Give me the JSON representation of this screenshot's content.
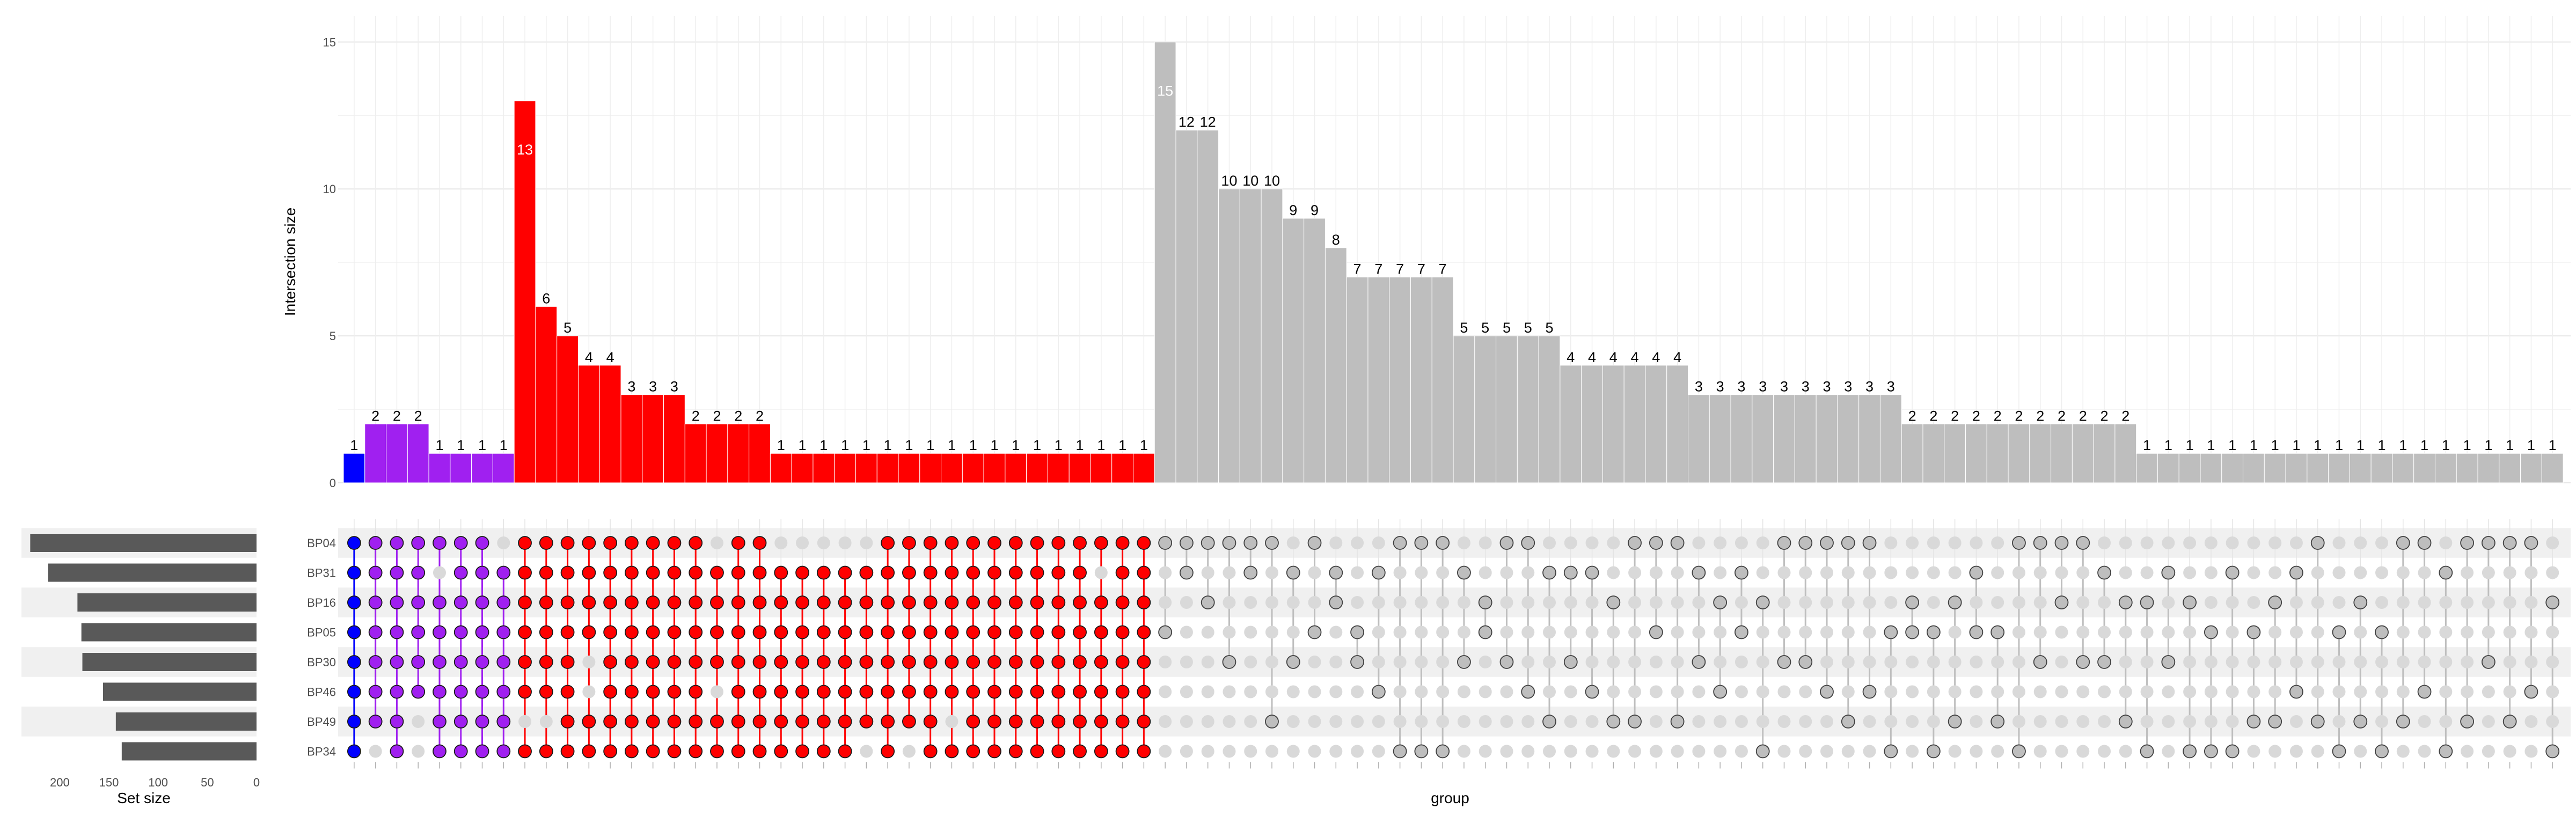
{
  "chart_data": {
    "type": "bar",
    "ylabel": "Intersection size",
    "xlabel": "group",
    "set_size_label": "Set size",
    "ylim": [
      0,
      15.7
    ],
    "yticks": [
      0,
      5,
      10,
      15
    ],
    "sets": [
      "BP04",
      "BP31",
      "BP16",
      "BP05",
      "BP30",
      "BP46",
      "BP49",
      "BP34"
    ],
    "set_sizes": [
      230,
      212,
      182,
      178,
      177,
      156,
      143,
      137
    ],
    "set_size_ticks": [
      200,
      150,
      100,
      50,
      0
    ],
    "set_size_max": 240,
    "colors": {
      "blue": "#0000ff",
      "purple": "#a020f0",
      "red": "#ff0000",
      "gray": "#bebebe",
      "bar": "#595959",
      "dot_off": "#d9d9d9",
      "stripe": "#f0f0f0"
    },
    "columns": [
      {
        "value": 1,
        "group": "blue",
        "members": [
          0,
          1,
          2,
          3,
          4,
          5,
          6,
          7
        ]
      },
      {
        "value": 2,
        "group": "purple",
        "members": [
          0,
          1,
          2,
          3,
          4,
          5,
          6
        ]
      },
      {
        "value": 2,
        "group": "purple",
        "members": [
          0,
          1,
          2,
          3,
          4,
          5,
          6,
          7
        ]
      },
      {
        "value": 2,
        "group": "purple",
        "members": [
          0,
          1,
          2,
          3,
          4,
          5
        ]
      },
      {
        "value": 1,
        "group": "purple",
        "members": [
          0,
          2,
          3,
          4,
          5,
          6,
          7
        ]
      },
      {
        "value": 1,
        "group": "purple",
        "members": [
          0,
          1,
          2,
          3,
          4,
          5,
          6,
          7
        ]
      },
      {
        "value": 1,
        "group": "purple",
        "members": [
          0,
          1,
          2,
          3,
          4,
          5,
          6,
          7
        ]
      },
      {
        "value": 1,
        "group": "purple",
        "members": [
          1,
          2,
          3,
          4,
          5,
          6,
          7
        ]
      },
      {
        "value": 13,
        "group": "red",
        "members": [
          0,
          1,
          2,
          3,
          4,
          5,
          7
        ]
      },
      {
        "value": 6,
        "group": "red",
        "members": [
          0,
          1,
          2,
          3,
          4,
          5,
          7
        ]
      },
      {
        "value": 5,
        "group": "red",
        "members": [
          0,
          1,
          2,
          3,
          4,
          5,
          6,
          7
        ]
      },
      {
        "value": 4,
        "group": "red",
        "members": [
          0,
          1,
          2,
          3,
          6,
          7
        ]
      },
      {
        "value": 4,
        "group": "red",
        "members": [
          0,
          1,
          2,
          3,
          4,
          5,
          6,
          7
        ]
      },
      {
        "value": 3,
        "group": "red",
        "members": [
          0,
          1,
          2,
          3,
          4,
          5,
          6,
          7
        ]
      },
      {
        "value": 3,
        "group": "red",
        "members": [
          0,
          1,
          2,
          3,
          4,
          5,
          6,
          7
        ]
      },
      {
        "value": 3,
        "group": "red",
        "members": [
          0,
          1,
          2,
          3,
          4,
          5,
          6,
          7
        ]
      },
      {
        "value": 2,
        "group": "red",
        "members": [
          0,
          1,
          2,
          3,
          4,
          5,
          6,
          7
        ]
      },
      {
        "value": 2,
        "group": "red",
        "members": [
          1,
          2,
          3,
          4,
          6,
          7
        ]
      },
      {
        "value": 2,
        "group": "red",
        "members": [
          0,
          1,
          2,
          3,
          4,
          5,
          6,
          7
        ]
      },
      {
        "value": 2,
        "group": "red",
        "members": [
          0,
          1,
          2,
          3,
          4,
          5,
          6,
          7
        ]
      },
      {
        "value": 1,
        "group": "red",
        "members": [
          1,
          2,
          3,
          4,
          5,
          6,
          7
        ]
      },
      {
        "value": 1,
        "group": "red",
        "members": [
          1,
          2,
          3,
          4,
          5,
          6,
          7
        ]
      },
      {
        "value": 1,
        "group": "red",
        "members": [
          1,
          2,
          3,
          4,
          5,
          6,
          7
        ]
      },
      {
        "value": 1,
        "group": "red",
        "members": [
          1,
          2,
          3,
          4,
          5,
          6,
          7
        ]
      },
      {
        "value": 1,
        "group": "red",
        "members": [
          1,
          2,
          3,
          4,
          5,
          6
        ]
      },
      {
        "value": 1,
        "group": "red",
        "members": [
          0,
          1,
          2,
          3,
          4,
          5,
          6,
          7
        ]
      },
      {
        "value": 1,
        "group": "red",
        "members": [
          0,
          1,
          2,
          3,
          4,
          5,
          6
        ]
      },
      {
        "value": 1,
        "group": "red",
        "members": [
          0,
          1,
          2,
          3,
          4,
          5,
          6,
          7
        ]
      },
      {
        "value": 1,
        "group": "red",
        "members": [
          0,
          1,
          2,
          3,
          4,
          5,
          7
        ]
      },
      {
        "value": 1,
        "group": "red",
        "members": [
          0,
          1,
          2,
          3,
          4,
          5,
          6,
          7
        ]
      },
      {
        "value": 1,
        "group": "red",
        "members": [
          0,
          1,
          2,
          3,
          4,
          5,
          6,
          7
        ]
      },
      {
        "value": 1,
        "group": "red",
        "members": [
          0,
          1,
          2,
          3,
          4,
          5,
          6,
          7
        ]
      },
      {
        "value": 1,
        "group": "red",
        "members": [
          0,
          1,
          2,
          3,
          4,
          5,
          6,
          7
        ]
      },
      {
        "value": 1,
        "group": "red",
        "members": [
          0,
          1,
          2,
          3,
          4,
          5,
          6,
          7
        ]
      },
      {
        "value": 1,
        "group": "red",
        "members": [
          0,
          1,
          2,
          3,
          4,
          5,
          6,
          7
        ]
      },
      {
        "value": 1,
        "group": "red",
        "members": [
          0,
          2,
          3,
          4,
          5,
          6,
          7
        ]
      },
      {
        "value": 1,
        "group": "red",
        "members": [
          0,
          1,
          2,
          3,
          4,
          5,
          6,
          7
        ]
      },
      {
        "value": 1,
        "group": "red",
        "members": [
          0,
          1,
          2,
          3,
          4,
          5,
          6,
          7
        ]
      },
      {
        "value": 15,
        "group": "gray",
        "members": [
          0,
          3
        ]
      },
      {
        "value": 12,
        "group": "gray",
        "members": [
          0,
          1
        ]
      },
      {
        "value": 12,
        "group": "gray",
        "members": [
          0,
          2
        ]
      },
      {
        "value": 10,
        "group": "gray",
        "members": [
          0,
          4
        ]
      },
      {
        "value": 10,
        "group": "gray",
        "members": [
          0,
          1
        ]
      },
      {
        "value": 10,
        "group": "gray",
        "members": [
          0,
          6
        ]
      },
      {
        "value": 9,
        "group": "gray",
        "members": [
          1,
          4
        ]
      },
      {
        "value": 9,
        "group": "gray",
        "members": [
          0,
          3
        ]
      },
      {
        "value": 8,
        "group": "gray",
        "members": [
          1,
          2
        ]
      },
      {
        "value": 7,
        "group": "gray",
        "members": [
          3,
          4
        ]
      },
      {
        "value": 7,
        "group": "gray",
        "members": [
          1,
          5
        ]
      },
      {
        "value": 7,
        "group": "gray",
        "members": [
          0,
          7
        ]
      },
      {
        "value": 7,
        "group": "gray",
        "members": [
          0,
          7
        ]
      },
      {
        "value": 7,
        "group": "gray",
        "members": [
          0,
          7
        ]
      },
      {
        "value": 5,
        "group": "gray",
        "members": [
          1,
          4
        ]
      },
      {
        "value": 5,
        "group": "gray",
        "members": [
          2,
          3
        ]
      },
      {
        "value": 5,
        "group": "gray",
        "members": [
          0,
          4
        ]
      },
      {
        "value": 5,
        "group": "gray",
        "members": [
          0,
          5
        ]
      },
      {
        "value": 5,
        "group": "gray",
        "members": [
          1,
          6
        ]
      },
      {
        "value": 4,
        "group": "gray",
        "members": [
          1,
          4
        ]
      },
      {
        "value": 4,
        "group": "gray",
        "members": [
          1,
          5
        ]
      },
      {
        "value": 4,
        "group": "gray",
        "members": [
          2,
          6
        ]
      },
      {
        "value": 4,
        "group": "gray",
        "members": [
          0,
          6
        ]
      },
      {
        "value": 4,
        "group": "gray",
        "members": [
          0,
          3
        ]
      },
      {
        "value": 4,
        "group": "gray",
        "members": [
          0,
          6
        ]
      },
      {
        "value": 3,
        "group": "gray",
        "members": [
          1,
          4
        ]
      },
      {
        "value": 3,
        "group": "gray",
        "members": [
          2,
          5
        ]
      },
      {
        "value": 3,
        "group": "gray",
        "members": [
          1,
          3
        ]
      },
      {
        "value": 3,
        "group": "gray",
        "members": [
          2,
          7
        ]
      },
      {
        "value": 3,
        "group": "gray",
        "members": [
          0,
          4
        ]
      },
      {
        "value": 3,
        "group": "gray",
        "members": [
          0,
          4
        ]
      },
      {
        "value": 3,
        "group": "gray",
        "members": [
          0,
          5
        ]
      },
      {
        "value": 3,
        "group": "gray",
        "members": [
          0,
          6
        ]
      },
      {
        "value": 3,
        "group": "gray",
        "members": [
          0,
          5
        ]
      },
      {
        "value": 3,
        "group": "gray",
        "members": [
          3,
          7
        ]
      },
      {
        "value": 2,
        "group": "gray",
        "members": [
          2,
          3
        ]
      },
      {
        "value": 2,
        "group": "gray",
        "members": [
          3,
          7
        ]
      },
      {
        "value": 2,
        "group": "gray",
        "members": [
          2,
          6
        ]
      },
      {
        "value": 2,
        "group": "gray",
        "members": [
          1,
          3
        ]
      },
      {
        "value": 2,
        "group": "gray",
        "members": [
          3,
          6
        ]
      },
      {
        "value": 2,
        "group": "gray",
        "members": [
          0,
          7
        ]
      },
      {
        "value": 2,
        "group": "gray",
        "members": [
          0,
          4
        ]
      },
      {
        "value": 2,
        "group": "gray",
        "members": [
          0,
          2
        ]
      },
      {
        "value": 2,
        "group": "gray",
        "members": [
          0,
          4
        ]
      },
      {
        "value": 2,
        "group": "gray",
        "members": [
          1,
          4
        ]
      },
      {
        "value": 2,
        "group": "gray",
        "members": [
          2,
          6
        ]
      },
      {
        "value": 1,
        "group": "gray",
        "members": [
          2,
          7
        ]
      },
      {
        "value": 1,
        "group": "gray",
        "members": [
          1,
          4
        ]
      },
      {
        "value": 1,
        "group": "gray",
        "members": [
          2,
          7
        ]
      },
      {
        "value": 1,
        "group": "gray",
        "members": [
          3,
          7
        ]
      },
      {
        "value": 1,
        "group": "gray",
        "members": [
          1,
          7
        ]
      },
      {
        "value": 1,
        "group": "gray",
        "members": [
          3,
          6
        ]
      },
      {
        "value": 1,
        "group": "gray",
        "members": [
          2,
          6
        ]
      },
      {
        "value": 1,
        "group": "gray",
        "members": [
          1,
          5
        ]
      },
      {
        "value": 1,
        "group": "gray",
        "members": [
          0,
          6
        ]
      },
      {
        "value": 1,
        "group": "gray",
        "members": [
          3,
          7
        ]
      },
      {
        "value": 1,
        "group": "gray",
        "members": [
          2,
          6
        ]
      },
      {
        "value": 1,
        "group": "gray",
        "members": [
          3,
          7
        ]
      },
      {
        "value": 1,
        "group": "gray",
        "members": [
          0,
          6
        ]
      },
      {
        "value": 1,
        "group": "gray",
        "members": [
          0,
          5
        ]
      },
      {
        "value": 1,
        "group": "gray",
        "members": [
          1,
          7
        ]
      },
      {
        "value": 1,
        "group": "gray",
        "members": [
          0,
          6
        ]
      },
      {
        "value": 1,
        "group": "gray",
        "members": [
          0,
          4
        ]
      },
      {
        "value": 1,
        "group": "gray",
        "members": [
          0,
          6
        ]
      },
      {
        "value": 1,
        "group": "gray",
        "members": [
          0,
          5
        ]
      },
      {
        "value": 1,
        "group": "gray",
        "members": [
          2,
          7
        ]
      }
    ]
  }
}
